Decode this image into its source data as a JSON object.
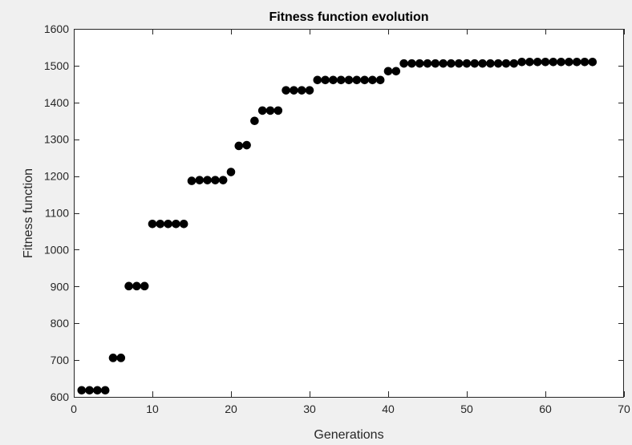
{
  "figure": {
    "background": "#f0f0f0",
    "axes_background": "#ffffff",
    "axis_color": "#262626",
    "marker_color": "#000000"
  },
  "chart_data": {
    "type": "scatter",
    "title": "Fitness function evolution",
    "xlabel": "Generations",
    "ylabel": "Fitness function",
    "xlim": [
      0,
      70
    ],
    "ylim": [
      600,
      1600
    ],
    "xticks": [
      0,
      10,
      20,
      30,
      40,
      50,
      60,
      70
    ],
    "yticks": [
      600,
      700,
      800,
      900,
      1000,
      1100,
      1200,
      1300,
      1400,
      1500,
      1600
    ],
    "grid": false,
    "marker": "filled-circle",
    "series": [
      {
        "x": [
          1,
          2,
          3,
          4,
          5,
          6,
          7,
          8,
          9,
          10,
          11,
          12,
          13,
          14,
          15,
          16,
          17,
          18,
          19,
          20,
          21,
          22,
          23,
          24,
          25,
          26,
          27,
          28,
          29,
          30,
          31,
          32,
          33,
          34,
          35,
          36,
          37,
          38,
          39,
          40,
          41,
          42,
          43,
          44,
          45,
          46,
          47,
          48,
          49,
          50,
          51,
          52,
          53,
          54,
          55,
          56,
          57,
          58,
          59,
          60,
          61,
          62,
          63,
          64,
          65,
          66
        ],
        "y": [
          618,
          618,
          618,
          618,
          706,
          706,
          901,
          901,
          901,
          1070,
          1070,
          1070,
          1070,
          1070,
          1187,
          1189,
          1189,
          1189,
          1189,
          1211,
          1282,
          1284,
          1350,
          1378,
          1378,
          1378,
          1433,
          1433,
          1433,
          1433,
          1461,
          1461,
          1461,
          1461,
          1461,
          1461,
          1461,
          1461,
          1461,
          1485,
          1485,
          1506,
          1506,
          1506,
          1506,
          1506,
          1506,
          1506,
          1506,
          1506,
          1506,
          1506,
          1506,
          1506,
          1506,
          1506,
          1510,
          1510,
          1510,
          1510,
          1510,
          1510,
          1510,
          1510,
          1510,
          1510
        ]
      }
    ]
  }
}
